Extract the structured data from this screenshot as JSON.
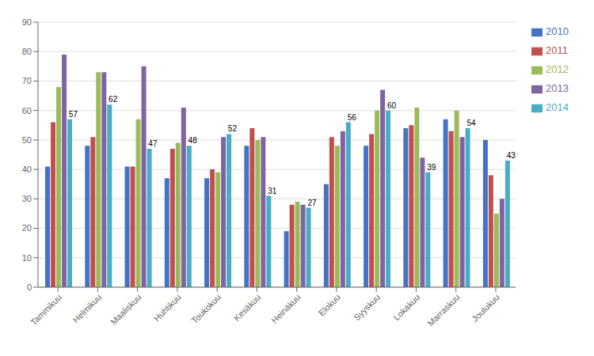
{
  "chart_data": {
    "type": "bar",
    "categories": [
      "Tammikuu",
      "Helmikuu",
      "Maaliskuu",
      "Huhtikuu",
      "Toukokuu",
      "Kesäkuu",
      "Heinäkuu",
      "Elokuu",
      "Syyskuu",
      "Lokakuu",
      "Marraskuu",
      "Joulukuu"
    ],
    "series": [
      {
        "name": "2010",
        "color": "#4472C4",
        "values": [
          41,
          48,
          41,
          37,
          37,
          48,
          19,
          35,
          48,
          54,
          57,
          50
        ]
      },
      {
        "name": "2011",
        "color": "#C0504D",
        "values": [
          56,
          51,
          41,
          47,
          40,
          54,
          28,
          51,
          52,
          55,
          53,
          38
        ]
      },
      {
        "name": "2012",
        "color": "#9BBB59",
        "values": [
          68,
          73,
          57,
          49,
          39,
          50,
          29,
          48,
          60,
          61,
          60,
          25
        ]
      },
      {
        "name": "2013",
        "color": "#8064A2",
        "values": [
          79,
          73,
          75,
          61,
          51,
          51,
          28,
          53,
          67,
          44,
          51,
          30
        ]
      },
      {
        "name": "2014",
        "color": "#4BACC6",
        "values": [
          57,
          62,
          47,
          48,
          52,
          31,
          27,
          56,
          60,
          39,
          54,
          43
        ],
        "data_labels": true
      }
    ],
    "ylim": [
      0,
      90
    ],
    "yticks": [
      0,
      10,
      20,
      30,
      40,
      50,
      60,
      70,
      80,
      90
    ],
    "grid": true,
    "legend": "right"
  }
}
